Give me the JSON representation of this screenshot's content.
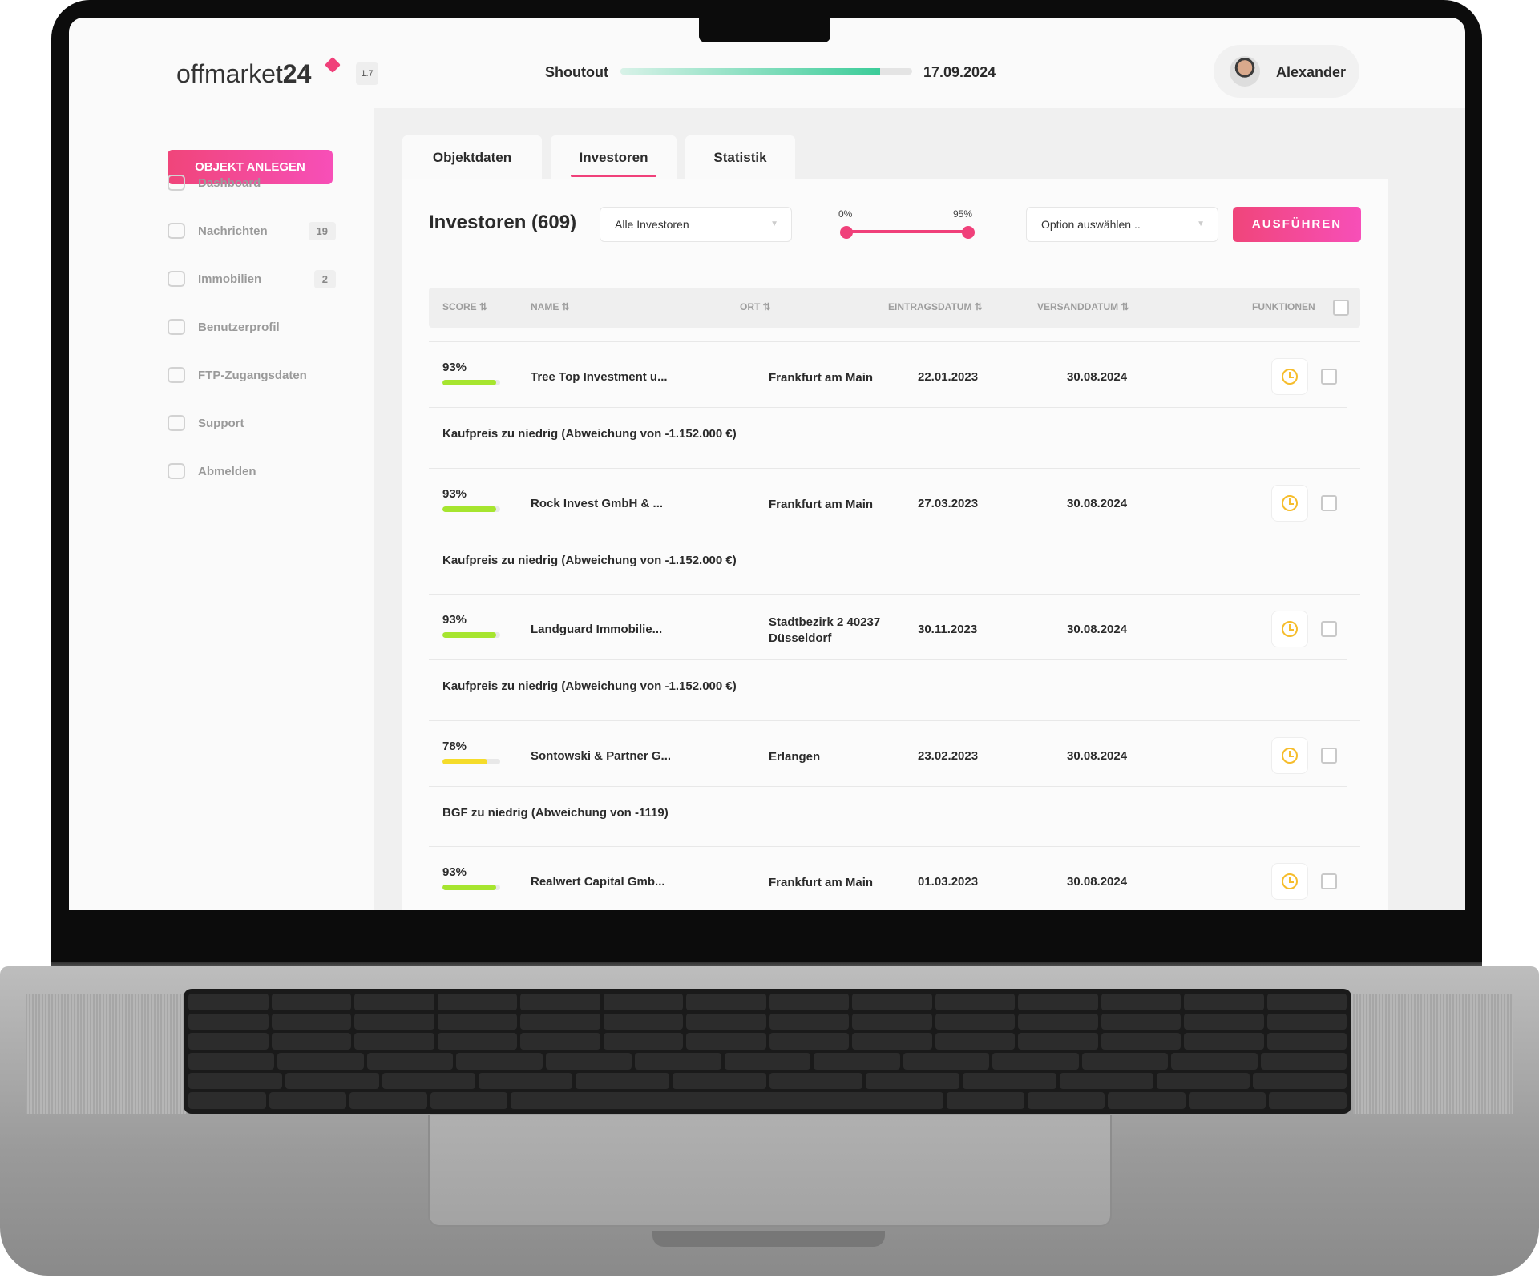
{
  "header": {
    "logo_light": "offmarket",
    "logo_bold": "24",
    "version": "1.7",
    "shoutout_label": "Shoutout",
    "shoutout_progress": 0.89,
    "shoutout_date": "17.09.2024",
    "user_name": "Alexander"
  },
  "sidebar": {
    "cta": "OBJEKT ANLEGEN",
    "items": [
      {
        "label": "Dashboard",
        "icon": "monitor-icon",
        "badge": null
      },
      {
        "label": "Nachrichten",
        "icon": "chat-icon",
        "badge": "19"
      },
      {
        "label": "Immobilien",
        "icon": "home-icon",
        "badge": "2"
      },
      {
        "label": "Benutzerprofil",
        "icon": "profile-icon",
        "badge": null
      },
      {
        "label": "FTP-Zugangsdaten",
        "icon": "server-icon",
        "badge": null
      },
      {
        "label": "Support",
        "icon": "support-icon",
        "badge": null
      },
      {
        "label": "Abmelden",
        "icon": "logout-icon",
        "badge": null
      }
    ]
  },
  "tabs": [
    {
      "label": "Objektdaten"
    },
    {
      "label": "Investoren",
      "active": true
    },
    {
      "label": "Statistik"
    }
  ],
  "panel": {
    "title": "Investoren (609)",
    "filter_value": "Alle Investoren",
    "slider": {
      "min_label": "0%",
      "max_label": "95%",
      "min": 0,
      "max": 95
    },
    "option_placeholder": "Option auswählen ..",
    "run_label": "AUSFÜHREN"
  },
  "table": {
    "headers": {
      "score": "SCORE ⇅",
      "name": "NAME ⇅",
      "ort": "ORT ⇅",
      "eintrag": "EINTRAGSDATUM ⇅",
      "versand": "VERSANDDATUM ⇅",
      "funktionen": "FUNKTIONEN"
    },
    "rows": [
      {
        "score": "93%",
        "score_value": 93,
        "bar_color": "#a6e52f",
        "name": "Tree Top Investment u...",
        "ort": "Frankfurt am Main",
        "eintrag": "22.01.2023",
        "versand": "30.08.2024",
        "note": "Kaufpreis zu niedrig (Abweichung von -1.152.000 €)"
      },
      {
        "score": "93%",
        "score_value": 93,
        "bar_color": "#a6e52f",
        "name": "Rock Invest GmbH & ...",
        "ort": "Frankfurt am Main",
        "eintrag": "27.03.2023",
        "versand": "30.08.2024",
        "note": "Kaufpreis zu niedrig (Abweichung von -1.152.000 €)"
      },
      {
        "score": "93%",
        "score_value": 93,
        "bar_color": "#a6e52f",
        "name": "Landguard Immobilie...",
        "ort": "Stadtbezirk 2 40237 Düsseldorf",
        "eintrag": "30.11.2023",
        "versand": "30.08.2024",
        "note": "Kaufpreis zu niedrig (Abweichung von -1.152.000 €)"
      },
      {
        "score": "78%",
        "score_value": 78,
        "bar_color": "#f5dc2a",
        "name": "Sontowski & Partner G...",
        "ort": "Erlangen",
        "eintrag": "23.02.2023",
        "versand": "30.08.2024",
        "note": "BGF zu niedrig (Abweichung von -1119)"
      },
      {
        "score": "93%",
        "score_value": 93,
        "bar_color": "#a6e52f",
        "name": "Realwert Capital Gmb...",
        "ort": "Frankfurt am Main",
        "eintrag": "01.03.2023",
        "versand": "30.08.2024",
        "note": ""
      }
    ]
  }
}
